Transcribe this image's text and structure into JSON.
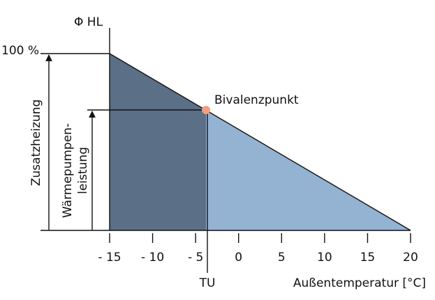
{
  "y_axis_label": "Φ HL",
  "y_full_label": "100 %",
  "annotations": {
    "bivalence_point": "Bivalenzpunkt",
    "extra_heating": "Zusatzheizung",
    "heat_pump_line1": "Wärmepumpen-",
    "heat_pump_line2": "leistung",
    "tu": "TU"
  },
  "x_axis": {
    "label": "Außentemperatur [°C]",
    "ticks": [
      "- 15",
      "- 10",
      "- 5",
      "0",
      "5",
      "10",
      "15",
      "20"
    ]
  }
}
